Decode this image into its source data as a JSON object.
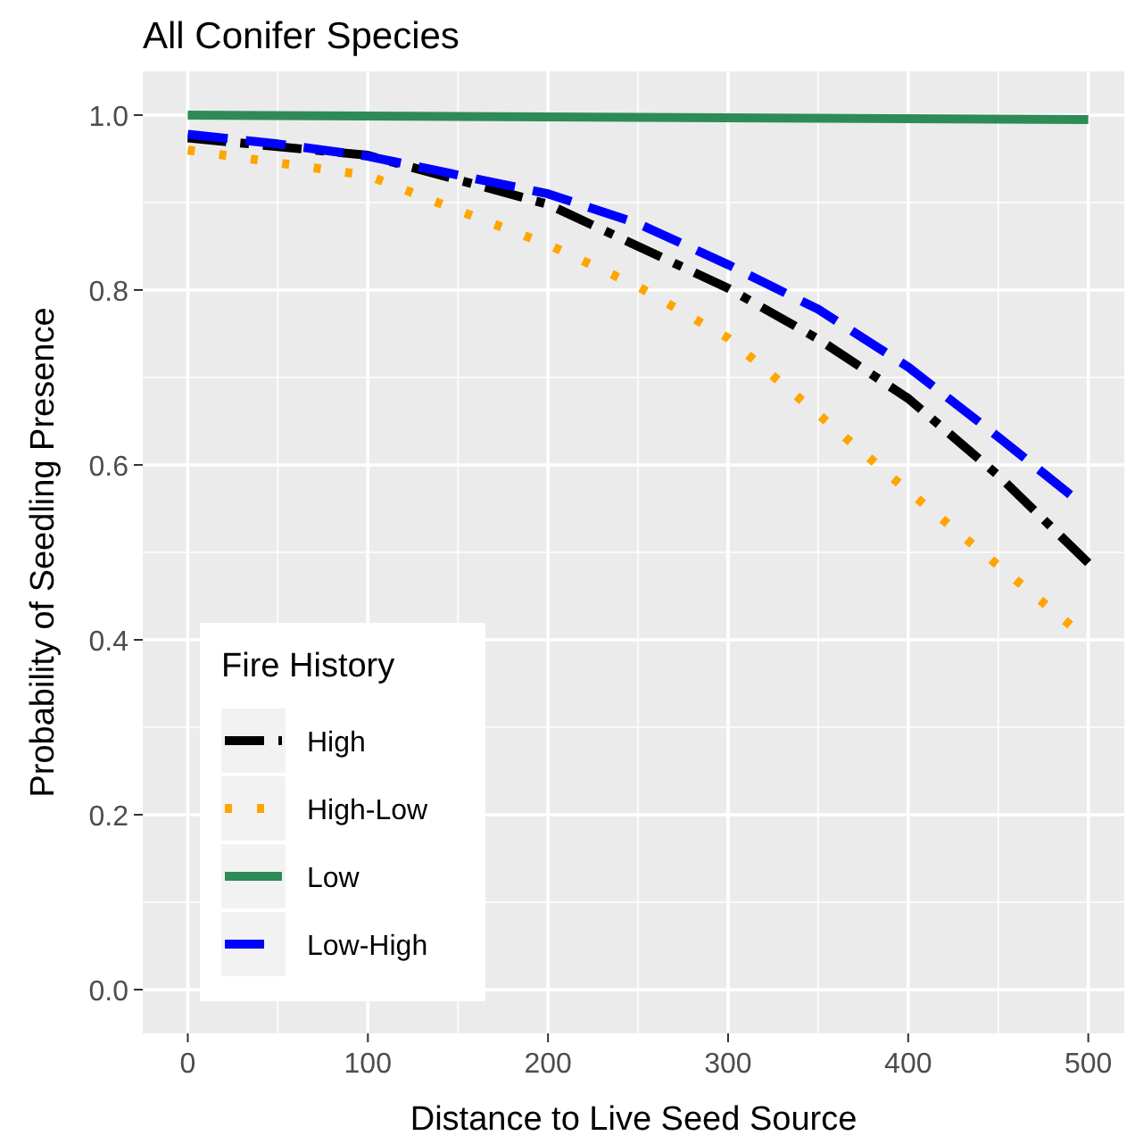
{
  "chart_data": {
    "type": "line",
    "title": "All Conifer Species",
    "xlabel": "Distance to Live Seed Source",
    "ylabel": "Probability of Seedling Presence",
    "legend_title": "Fire History",
    "legend": "bottom left",
    "grid": true,
    "xlim": [
      -25,
      520
    ],
    "ylim": [
      -0.05,
      1.05
    ],
    "xticks": [
      0,
      100,
      200,
      300,
      400,
      500
    ],
    "yticks": [
      {
        "value": 0,
        "label": "0.0"
      },
      {
        "value": 0.2,
        "label": "0.2"
      },
      {
        "value": 0.4,
        "label": "0.4"
      },
      {
        "value": 0.6,
        "label": "0.6"
      },
      {
        "value": 0.8,
        "label": "0.8"
      },
      {
        "value": 1,
        "label": "1.0"
      }
    ],
    "series": [
      {
        "name": "High",
        "color": "#000000",
        "line_style": "dashdot",
        "x": [
          0,
          100,
          200,
          300,
          350,
          400,
          450,
          500
        ],
        "values": [
          0.974,
          0.954,
          0.898,
          0.802,
          0.744,
          0.676,
          0.588,
          0.488
        ]
      },
      {
        "name": "High-Low",
        "color": "#ffa500",
        "line_style": "dotted",
        "x": [
          0,
          100,
          150,
          200,
          250,
          300,
          350,
          400,
          450,
          490
        ],
        "values": [
          0.96,
          0.931,
          0.891,
          0.852,
          0.804,
          0.745,
          0.658,
          0.57,
          0.485,
          0.417
        ]
      },
      {
        "name": "Low",
        "color": "#2e8b57",
        "line_style": "solid",
        "x": [
          0,
          500
        ],
        "values": [
          1.0,
          0.995
        ]
      },
      {
        "name": "Low-High",
        "color": "#0000ff",
        "line_style": "dashed",
        "x": [
          0,
          50,
          100,
          200,
          250,
          300,
          350,
          400,
          450,
          490
        ],
        "values": [
          0.978,
          0.967,
          0.953,
          0.91,
          0.876,
          0.829,
          0.778,
          0.712,
          0.632,
          0.566
        ]
      }
    ]
  }
}
